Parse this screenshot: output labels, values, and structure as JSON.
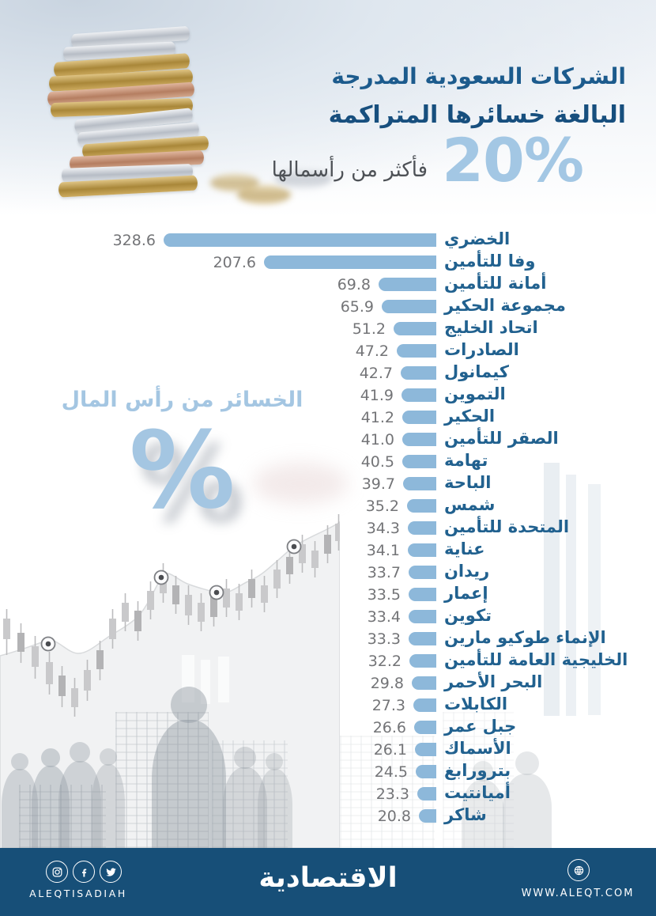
{
  "header": {
    "title_line1": "الشركات السعودية المدرجة",
    "title_line2": "البالغة خسائرها المتراكمة",
    "big_percent": "20%",
    "subtitle": "فأكثر من رأسمالها"
  },
  "watermark": {
    "label": "الخسائر من رأس المال",
    "symbol": "%"
  },
  "chart_data": {
    "type": "bar",
    "orientation": "horizontal",
    "title": "الشركات السعودية المدرجة البالغة خسائرها المتراكمة 20% فأكثر من رأسمالها",
    "value_axis_label": "الخسائر من رأس المال %",
    "categories": [
      "الخضري",
      "وفا للتأمين",
      "أمانة للتأمين",
      "مجموعة الحكير",
      "اتحاد الخليج",
      "الصادرات",
      "كيمانول",
      "التموين",
      "الحكير",
      "الصقر للتأمين",
      "تهامة",
      "الباحة",
      "شمس",
      "المتحدة للتأمين",
      "عناية",
      "ريدان",
      "إعمار",
      "تكوين",
      "الإنماء طوكيو مارين",
      "الخليجية العامة للتأمين",
      "البحر الأحمر",
      "الكابلات",
      "جبل عمر",
      "الأسماك",
      "بترورابغ",
      "أميانتيت",
      "شاكر"
    ],
    "values": [
      328.6,
      207.6,
      69.8,
      65.9,
      51.2,
      47.2,
      42.7,
      41.9,
      41.2,
      41.0,
      40.5,
      39.7,
      35.2,
      34.3,
      34.1,
      33.7,
      33.5,
      33.4,
      33.3,
      32.2,
      29.8,
      27.3,
      26.6,
      26.1,
      24.5,
      23.3,
      20.8
    ],
    "value_labels": [
      "328.6",
      "207.6",
      "69.8",
      "65.9",
      "51.2",
      "47.2",
      "42.7",
      "41.9",
      "41.2",
      "41.0",
      "40.5",
      "39.7",
      "35.2",
      "34.3",
      "34.1",
      "33.7",
      "33.5",
      "33.4",
      "33.3",
      "32.2",
      "29.8",
      "27.3",
      "26.6",
      "26.1",
      "24.5",
      "23.3",
      "20.8"
    ],
    "bar_color": "#8db8da",
    "grid": false,
    "legend": false
  },
  "footer": {
    "brand_latin": "ALEQTISADIAH",
    "brand_arabic": "الاقتصادية",
    "website": "WWW.ALEQT.COM",
    "icons": [
      "instagram-icon",
      "facebook-icon",
      "twitter-icon",
      "globe-icon"
    ]
  },
  "colors": {
    "title_blue": "#1c5b8d",
    "accent_light_blue": "#a4c6e2",
    "bar_blue": "#8db8da",
    "value_gray": "#737477",
    "footer_bg": "#174f78"
  }
}
